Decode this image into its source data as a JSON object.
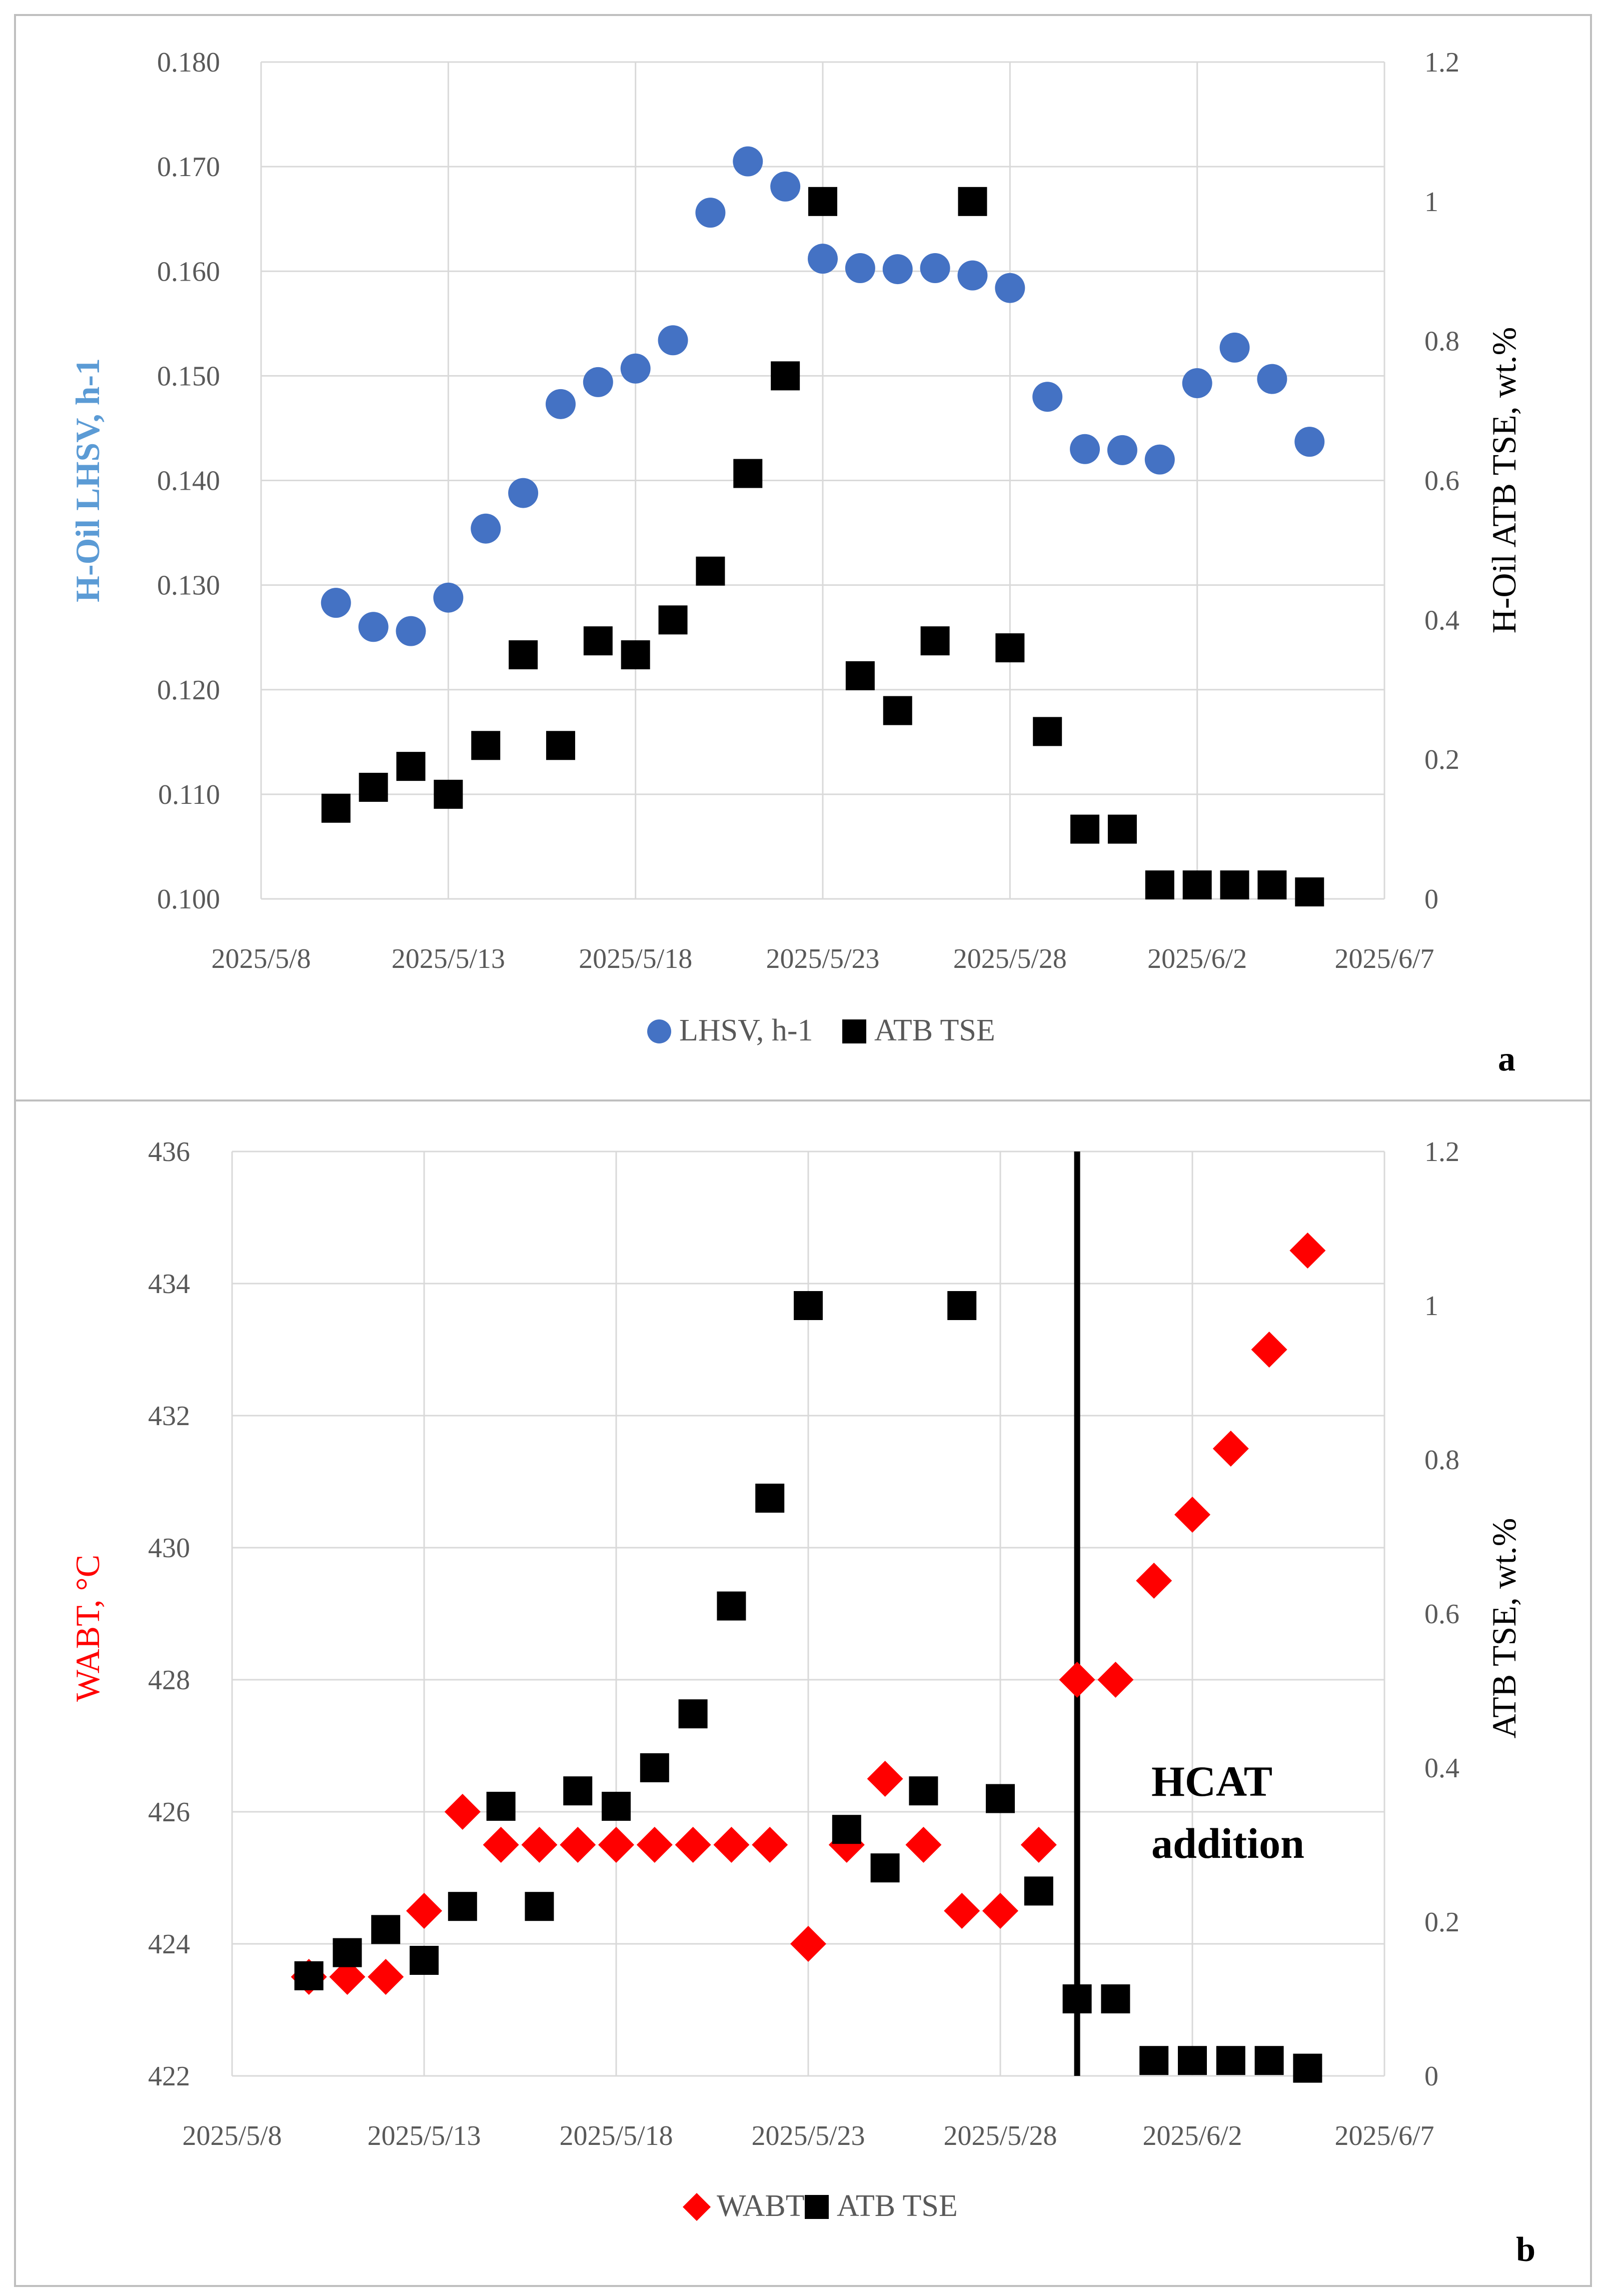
{
  "colors": {
    "lhsv": "#4472C4",
    "lhsv_label": "#5B9BD5",
    "atb": "#000000",
    "wabt": "#FF0000",
    "grid": "#D9D9D9",
    "frame": "#BFBFBF",
    "axis_text": "#595959"
  },
  "chart_data": [
    {
      "type": "scatter",
      "panel_label": "a",
      "x_axis": {
        "min": "2025/5/8",
        "max": "2025/6/7",
        "tick_step_days": 5,
        "tick_labels": [
          "2025/5/8",
          "2025/5/13",
          "2025/5/18",
          "2025/5/23",
          "2025/5/28",
          "2025/6/2",
          "2025/6/7"
        ]
      },
      "y_left": {
        "label": "H-Oil LHSV, h-1",
        "min": 0.1,
        "max": 0.18,
        "tick_labels": [
          "0.100",
          "0.110",
          "0.120",
          "0.130",
          "0.140",
          "0.150",
          "0.160",
          "0.170",
          "0.180"
        ]
      },
      "y_right": {
        "label": "H-Oil ATB TSE, wt.%",
        "min": 0,
        "max": 1.2,
        "tick_labels": [
          "0",
          "0.2",
          "0.4",
          "0.6",
          "0.8",
          "1",
          "1.2"
        ]
      },
      "legend": [
        "LHSV, h-1",
        "ATB TSE"
      ],
      "series": [
        {
          "name": "LHSV, h-1",
          "axis": "left",
          "marker": "circle",
          "x": [
            "2025/5/10",
            "2025/5/11",
            "2025/5/12",
            "2025/5/13",
            "2025/5/14",
            "2025/5/15",
            "2025/5/16",
            "2025/5/17",
            "2025/5/18",
            "2025/5/19",
            "2025/5/20",
            "2025/5/21",
            "2025/5/22",
            "2025/5/23",
            "2025/5/24",
            "2025/5/25",
            "2025/5/26",
            "2025/5/27",
            "2025/5/28",
            "2025/5/29",
            "2025/5/30",
            "2025/5/31",
            "2025/6/1",
            "2025/6/2",
            "2025/6/3",
            "2025/6/4",
            "2025/6/5"
          ],
          "values": [
            0.1283,
            0.126,
            0.1256,
            0.1288,
            0.1354,
            0.1388,
            0.1473,
            0.1494,
            0.1507,
            0.1534,
            0.1656,
            0.1705,
            0.1681,
            0.1612,
            0.1603,
            0.1602,
            0.1603,
            0.1596,
            0.1584,
            0.148,
            0.143,
            0.1429,
            0.142,
            0.1493,
            0.1527,
            0.1497,
            0.1437
          ]
        },
        {
          "name": "ATB TSE",
          "axis": "right",
          "marker": "square",
          "x": [
            "2025/5/10",
            "2025/5/11",
            "2025/5/12",
            "2025/5/13",
            "2025/5/14",
            "2025/5/15",
            "2025/5/16",
            "2025/5/17",
            "2025/5/18",
            "2025/5/19",
            "2025/5/20",
            "2025/5/21",
            "2025/5/22",
            "2025/5/23",
            "2025/5/24",
            "2025/5/25",
            "2025/5/26",
            "2025/5/27",
            "2025/5/28",
            "2025/5/29",
            "2025/5/30",
            "2025/5/31",
            "2025/6/1",
            "2025/6/2",
            "2025/6/3",
            "2025/6/4",
            "2025/6/5"
          ],
          "values": [
            0.13,
            0.16,
            0.19,
            0.15,
            0.22,
            0.35,
            0.22,
            0.37,
            0.35,
            0.4,
            0.47,
            0.61,
            0.75,
            1.0,
            0.32,
            0.27,
            0.37,
            1.0,
            0.36,
            0.24,
            0.1,
            0.1,
            0.02,
            0.02,
            0.02,
            0.02,
            0.01
          ]
        }
      ]
    },
    {
      "type": "scatter",
      "panel_label": "b",
      "x_axis": {
        "min": "2025/5/8",
        "max": "2025/6/7",
        "tick_step_days": 5,
        "tick_labels": [
          "2025/5/8",
          "2025/5/13",
          "2025/5/18",
          "2025/5/23",
          "2025/5/28",
          "2025/6/2",
          "2025/6/7"
        ]
      },
      "y_left": {
        "label": "WABT, °C",
        "min": 422,
        "max": 436,
        "tick_labels": [
          "422",
          "424",
          "426",
          "428",
          "430",
          "432",
          "434",
          "436"
        ]
      },
      "y_right": {
        "label": "ATB TSE, wt.%",
        "min": 0,
        "max": 1.2,
        "tick_labels": [
          "0",
          "0.2",
          "0.4",
          "0.6",
          "0.8",
          "1",
          "1.2"
        ]
      },
      "legend": [
        "WABT",
        "ATB TSE"
      ],
      "annotation": {
        "lines": [
          "HCAT",
          "addition"
        ],
        "vline_x": "2025/5/30"
      },
      "series": [
        {
          "name": "WABT",
          "axis": "left",
          "marker": "diamond",
          "x": [
            "2025/5/10",
            "2025/5/11",
            "2025/5/12",
            "2025/5/13",
            "2025/5/14",
            "2025/5/15",
            "2025/5/16",
            "2025/5/17",
            "2025/5/18",
            "2025/5/19",
            "2025/5/20",
            "2025/5/21",
            "2025/5/22",
            "2025/5/23",
            "2025/5/24",
            "2025/5/25",
            "2025/5/26",
            "2025/5/27",
            "2025/5/28",
            "2025/5/29",
            "2025/5/30",
            "2025/5/31",
            "2025/6/1",
            "2025/6/2",
            "2025/6/3",
            "2025/6/4",
            "2025/6/5"
          ],
          "values": [
            423.5,
            423.5,
            423.5,
            424.5,
            426.0,
            425.5,
            425.5,
            425.5,
            425.5,
            425.5,
            425.5,
            425.5,
            425.5,
            424.0,
            425.5,
            426.5,
            425.5,
            424.5,
            424.5,
            425.5,
            428.0,
            428.0,
            429.5,
            430.5,
            431.5,
            433.0,
            434.5
          ]
        },
        {
          "name": "ATB TSE",
          "axis": "right",
          "marker": "square",
          "x": [
            "2025/5/10",
            "2025/5/11",
            "2025/5/12",
            "2025/5/13",
            "2025/5/14",
            "2025/5/15",
            "2025/5/16",
            "2025/5/17",
            "2025/5/18",
            "2025/5/19",
            "2025/5/20",
            "2025/5/21",
            "2025/5/22",
            "2025/5/23",
            "2025/5/24",
            "2025/5/25",
            "2025/5/26",
            "2025/5/27",
            "2025/5/28",
            "2025/5/29",
            "2025/5/30",
            "2025/5/31",
            "2025/6/1",
            "2025/6/2",
            "2025/6/3",
            "2025/6/4",
            "2025/6/5"
          ],
          "values": [
            0.13,
            0.16,
            0.19,
            0.15,
            0.22,
            0.35,
            0.22,
            0.37,
            0.35,
            0.4,
            0.47,
            0.61,
            0.75,
            1.0,
            0.32,
            0.27,
            0.37,
            1.0,
            0.36,
            0.24,
            0.1,
            0.1,
            0.02,
            0.02,
            0.02,
            0.02,
            0.01
          ]
        }
      ]
    }
  ]
}
